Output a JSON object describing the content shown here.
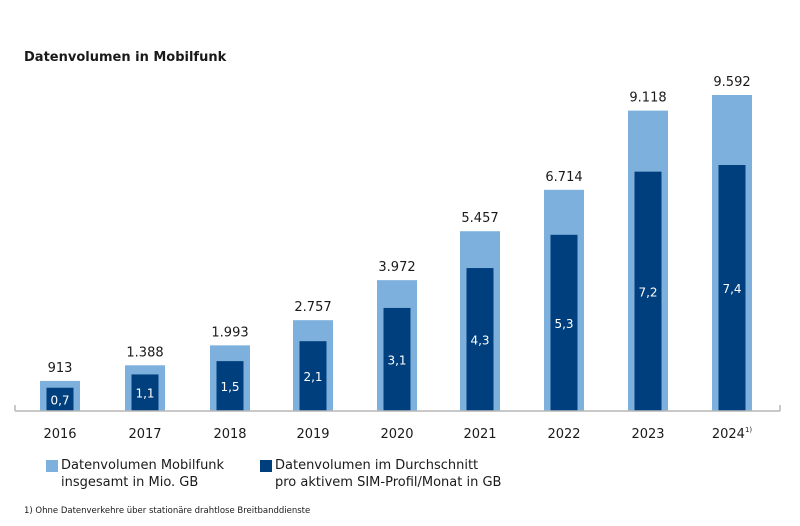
{
  "chart_data": {
    "type": "bar",
    "title": "Datenvolumen in Mobilfunk",
    "categories": [
      "2016",
      "2017",
      "2018",
      "2019",
      "2020",
      "2021",
      "2022",
      "2023",
      "2024"
    ],
    "category_footnote_marks": [
      "",
      "",
      "",
      "",
      "",
      "",
      "",
      "",
      "1)"
    ],
    "series": [
      {
        "name": "Datenvolumen Mobilfunk insgesamt in Mio. GB",
        "values": [
          913,
          1388,
          1993,
          2757,
          3972,
          5457,
          6714,
          9118,
          9592
        ],
        "labels": [
          "913",
          "1.388",
          "1.993",
          "2.757",
          "3.972",
          "5.457",
          "6.714",
          "9.118",
          "9.592"
        ],
        "color": "#7eb0dd"
      },
      {
        "name": "Datenvolumen im Durchschnitt pro aktivem SIM-Profil/Monat in GB",
        "values": [
          0.7,
          1.1,
          1.5,
          2.1,
          3.1,
          4.3,
          5.3,
          7.2,
          7.4
        ],
        "labels": [
          "0,7",
          "1,1",
          "1,5",
          "2,1",
          "3,1",
          "4,3",
          "5,3",
          "7,2",
          "7,4"
        ],
        "color": "#003f7d"
      }
    ],
    "legend": {
      "position": "bottom-left",
      "items": [
        {
          "line1": "Datenvolumen Mobilfunk",
          "line2": "insgesamt in Mio. GB"
        },
        {
          "line1": "Datenvolumen im Durchschnitt",
          "line2": "pro aktivem SIM-Profil/Monat in GB"
        }
      ]
    },
    "footnote": "1) Ohne Datenverkehre über stationäre drahtlose Breitbanddienste",
    "grid": false,
    "axis_line_color": "#b7b7b7"
  }
}
